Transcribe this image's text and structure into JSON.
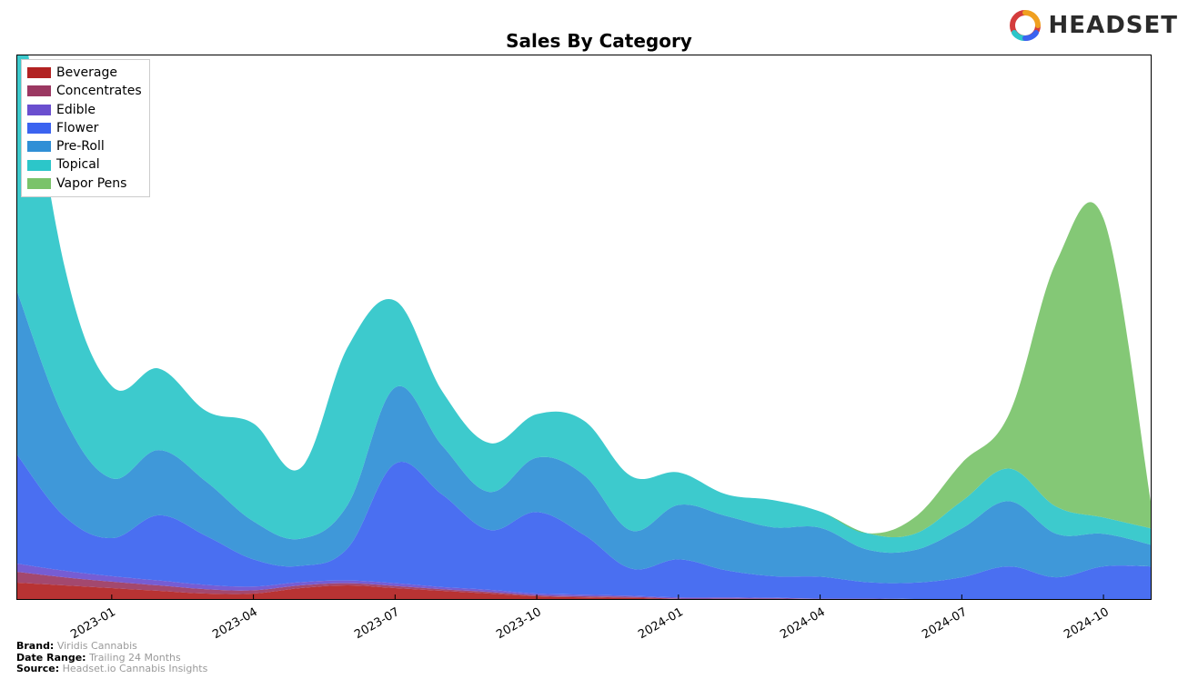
{
  "title": "Sales By Category",
  "logo_text": "HEADSET",
  "chart": {
    "type": "area",
    "background_color": "#ffffff",
    "border_color": "#000000",
    "ymax": 100,
    "x_labels": [
      "2023-01",
      "2023-04",
      "2023-07",
      "2023-10",
      "2024-01",
      "2024-04",
      "2024-07",
      "2024-10"
    ],
    "x_tick_positions_months": [
      2,
      5,
      8,
      11,
      14,
      17,
      20,
      23
    ],
    "x_label_fontsize": 13,
    "x_label_rotation_deg": -30,
    "n_points": 25,
    "series": [
      {
        "name": "Beverage",
        "color": "#b22222",
        "values": [
          3,
          2.5,
          2,
          1.5,
          1,
          1,
          2,
          2.5,
          2,
          1.5,
          1,
          0.5,
          0.3,
          0.2,
          0,
          0,
          0,
          0,
          0,
          0,
          0,
          0,
          0,
          0,
          0
        ]
      },
      {
        "name": "Concentrates",
        "color": "#9b3862",
        "values": [
          2,
          1.5,
          1.2,
          1,
          0.8,
          0.6,
          0.5,
          0.4,
          0.4,
          0.3,
          0.3,
          0.2,
          0.2,
          0.2,
          0.1,
          0.1,
          0.1,
          0,
          0,
          0,
          0,
          0,
          0,
          0,
          0
        ]
      },
      {
        "name": "Edible",
        "color": "#6a4fcf",
        "values": [
          1.5,
          1.2,
          1,
          0.9,
          0.8,
          0.7,
          0.6,
          0.5,
          0.5,
          0.4,
          0.4,
          0.3,
          0.3,
          0.2,
          0.2,
          0.2,
          0.1,
          0.1,
          0.1,
          0,
          0,
          0,
          0,
          0,
          0
        ]
      },
      {
        "name": "Flower",
        "color": "#3b63f0",
        "values": [
          20,
          10,
          7,
          12,
          9,
          5,
          3,
          6,
          22,
          17,
          11,
          15,
          11,
          5,
          7,
          5,
          4,
          4,
          3,
          3,
          4,
          6,
          4,
          6,
          6
        ]
      },
      {
        "name": "Pre-Roll",
        "color": "#2f8fd6",
        "values": [
          30,
          18,
          11,
          12,
          10,
          7,
          5,
          8,
          14,
          9,
          7,
          10,
          11,
          7,
          10,
          10,
          9,
          9,
          6,
          6,
          9,
          12,
          8,
          6,
          4
        ]
      },
      {
        "name": "Topical",
        "color": "#2cc6c9",
        "values": [
          57,
          28,
          17,
          15,
          13,
          18,
          13,
          29,
          16,
          10,
          9,
          8,
          10,
          10,
          6,
          4,
          5,
          3,
          3,
          3,
          5,
          6,
          5,
          3,
          3
        ]
      },
      {
        "name": "Vapor Pens",
        "color": "#7ac36a",
        "values": [
          0,
          0,
          0,
          0,
          0,
          0,
          0,
          0,
          0,
          0,
          0,
          0,
          0,
          0,
          0,
          0,
          0,
          0,
          0,
          3,
          7,
          10,
          45,
          55,
          5
        ]
      }
    ]
  },
  "footer": {
    "brand_label": "Brand:",
    "brand_value": "Viridis Cannabis",
    "date_range_label": "Date Range:",
    "date_range_value": "Trailing 24 Months",
    "source_label": "Source:",
    "source_value": "Headset.io Cannabis Insights"
  }
}
